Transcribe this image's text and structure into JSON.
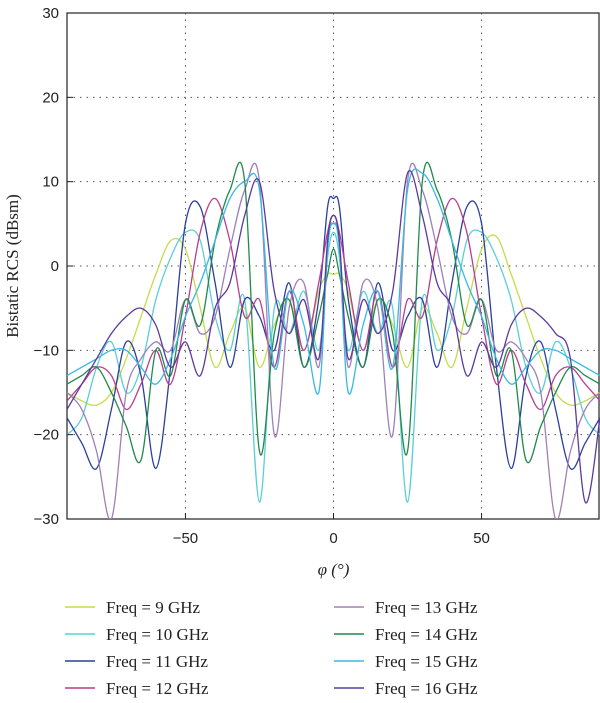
{
  "chart_data": {
    "type": "line",
    "xlabel": "φ (°)",
    "ylabel": "Bistatic RCS (dBsm)",
    "xlim": [
      -90,
      90
    ],
    "ylim": [
      -30,
      30
    ],
    "xticks": [
      -50,
      0,
      50
    ],
    "yticks": [
      -30,
      -20,
      -10,
      0,
      10,
      20,
      30
    ],
    "grid": true,
    "legend_position": "bottom",
    "series": [
      {
        "name": "Freq = 9 GHz",
        "color": "#c6dc4a",
        "x": [
          -90,
          -85,
          -80,
          -75,
          -70,
          -65,
          -60,
          -55,
          -50,
          -45,
          -40,
          -35,
          -30,
          -25,
          -20,
          -15,
          -10,
          -5,
          -2,
          0,
          2,
          5,
          10,
          15,
          20,
          25,
          30,
          35,
          40,
          45,
          50,
          55,
          60,
          65,
          70,
          75,
          80,
          85,
          90
        ],
        "y": [
          -15,
          -16,
          -16.5,
          -15,
          -11,
          -6,
          -1,
          3,
          2,
          -5,
          -12,
          -8,
          -5,
          -12,
          -7,
          -4,
          -10,
          -3,
          -1,
          -1,
          -1,
          -3,
          -10,
          -4,
          -7,
          -12,
          -5,
          -8,
          -12,
          -5,
          2,
          3.5,
          -1,
          -6,
          -11,
          -15,
          -16.5,
          -16,
          -15
        ]
      },
      {
        "name": "Freq = 10 GHz",
        "color": "#5bcfd6",
        "x": [
          -90,
          -85,
          -80,
          -75,
          -70,
          -65,
          -60,
          -55,
          -50,
          -45,
          -40,
          -35,
          -30,
          -25,
          -20,
          -15,
          -10,
          -5,
          -2,
          0,
          2,
          5,
          10,
          15,
          20,
          25,
          30,
          35,
          40,
          45,
          50,
          55,
          60,
          65,
          70,
          75,
          80,
          85,
          90
        ],
        "y": [
          -20,
          -18,
          -12,
          -9,
          -15,
          -12,
          -4,
          1,
          4,
          3,
          -6,
          -10,
          -4,
          -28,
          -5,
          -8,
          -3,
          -10,
          1,
          4,
          1,
          -10,
          -3,
          -8,
          -5,
          -28,
          -4,
          -10,
          -6,
          3,
          4,
          1,
          -4,
          -12,
          -15,
          -9,
          -12,
          -18,
          -20
        ]
      },
      {
        "name": "Freq = 11 GHz",
        "color": "#2b3f9e",
        "x": [
          -90,
          -85,
          -80,
          -75,
          -70,
          -65,
          -60,
          -55,
          -50,
          -45,
          -40,
          -35,
          -30,
          -25,
          -20,
          -15,
          -10,
          -5,
          -2,
          0,
          2,
          5,
          10,
          15,
          20,
          25,
          30,
          35,
          40,
          45,
          50,
          55,
          60,
          65,
          70,
          75,
          80,
          85,
          90
        ],
        "y": [
          -18,
          -21,
          -24,
          -17,
          -9,
          -13,
          -24,
          -12,
          5,
          7,
          -2,
          -12,
          -4,
          -6,
          -10,
          -2,
          -12,
          -4,
          7,
          8,
          7,
          -4,
          -12,
          -2,
          -10,
          -6,
          -4,
          -12,
          -2,
          7,
          5,
          -12,
          -24,
          -13,
          -9,
          -17,
          -24,
          -21,
          -18
        ]
      },
      {
        "name": "Freq = 12 GHz",
        "color": "#b83e8e",
        "x": [
          -90,
          -85,
          -80,
          -75,
          -70,
          -65,
          -60,
          -55,
          -50,
          -45,
          -40,
          -35,
          -30,
          -25,
          -20,
          -15,
          -10,
          -5,
          -2,
          0,
          2,
          5,
          10,
          15,
          20,
          25,
          30,
          35,
          40,
          45,
          50,
          55,
          60,
          65,
          70,
          75,
          80,
          85,
          90
        ],
        "y": [
          -16,
          -14,
          -12,
          -13,
          -17,
          -14,
          -10,
          -14,
          -6,
          4,
          8,
          3,
          -6,
          -4,
          -12,
          -3,
          -10,
          -2,
          4,
          6,
          4,
          -2,
          -10,
          -3,
          -12,
          -4,
          -6,
          3,
          8,
          4,
          -6,
          -14,
          -10,
          -14,
          -17,
          -13,
          -12,
          -14,
          -16
        ]
      },
      {
        "name": "Freq = 13 GHz",
        "color": "#a080b8",
        "x": [
          -90,
          -85,
          -80,
          -75,
          -70,
          -65,
          -60,
          -55,
          -50,
          -45,
          -40,
          -35,
          -30,
          -25,
          -20,
          -15,
          -10,
          -5,
          -2,
          0,
          2,
          5,
          10,
          15,
          20,
          25,
          30,
          35,
          40,
          45,
          50,
          55,
          60,
          65,
          70,
          75,
          80,
          85,
          90
        ],
        "y": [
          -15,
          -17,
          -22,
          -30,
          -15,
          -11,
          -9,
          -10,
          -4,
          -8,
          -6,
          2,
          9,
          10,
          -20,
          -5,
          -2,
          -12,
          3,
          5,
          3,
          -12,
          -2,
          -5,
          -20,
          10,
          9,
          2,
          -6,
          -8,
          -4,
          -10,
          -9,
          -11,
          -15,
          -30,
          -22,
          -17,
          -15
        ]
      },
      {
        "name": "Freq = 14 GHz",
        "color": "#1f8a4a",
        "x": [
          -90,
          -85,
          -80,
          -75,
          -70,
          -65,
          -60,
          -55,
          -50,
          -45,
          -40,
          -35,
          -30,
          -25,
          -20,
          -15,
          -10,
          -5,
          -2,
          0,
          2,
          5,
          10,
          15,
          20,
          25,
          30,
          35,
          40,
          45,
          50,
          55,
          60,
          65,
          70,
          75,
          80,
          85,
          90
        ],
        "y": [
          -14,
          -13,
          -12,
          -15,
          -19,
          -23,
          -10,
          -13,
          -4,
          -7,
          3,
          9,
          10,
          -22,
          -8,
          -4,
          -12,
          -6,
          -1,
          2,
          -1,
          -6,
          -12,
          -4,
          -8,
          -22,
          10,
          9,
          3,
          -7,
          -4,
          -13,
          -10,
          -23,
          -19,
          -15,
          -12,
          -13,
          -14
        ]
      },
      {
        "name": "Freq = 15 GHz",
        "color": "#38b8e2",
        "x": [
          -90,
          -85,
          -80,
          -75,
          -70,
          -65,
          -60,
          -55,
          -50,
          -45,
          -40,
          -35,
          -30,
          -25,
          -20,
          -15,
          -10,
          -5,
          -2,
          0,
          2,
          5,
          10,
          15,
          20,
          25,
          30,
          35,
          40,
          45,
          50,
          55,
          60,
          65,
          70,
          75,
          80,
          85,
          90
        ],
        "y": [
          -13,
          -12,
          -11,
          -10,
          -10,
          -12,
          -14,
          -11,
          -6,
          -2,
          3,
          8,
          10,
          9,
          -12,
          -3,
          -7,
          -15,
          2,
          5,
          2,
          -15,
          -7,
          -3,
          -12,
          9,
          11,
          8,
          3,
          -2,
          -6,
          -11,
          -14,
          -12,
          -10,
          -10,
          -11,
          -12,
          -13
        ]
      },
      {
        "name": "Freq = 16 GHz",
        "color": "#5b3a9e",
        "x": [
          -90,
          -85,
          -80,
          -75,
          -70,
          -65,
          -60,
          -55,
          -50,
          -45,
          -40,
          -35,
          -30,
          -25,
          -20,
          -15,
          -10,
          -5,
          -2,
          0,
          2,
          5,
          10,
          15,
          20,
          25,
          30,
          35,
          40,
          45,
          50,
          55,
          60,
          65,
          70,
          75,
          80,
          85,
          90
        ],
        "y": [
          -17,
          -14,
          -11,
          -8,
          -6,
          -5,
          -7,
          -12,
          -9,
          -13,
          -5,
          -2,
          6,
          10,
          -3,
          -8,
          -4,
          -11,
          3,
          6,
          3,
          -11,
          -4,
          -8,
          -3,
          11,
          6,
          -2,
          -5,
          -13,
          -9,
          -12,
          -7,
          -5,
          -6,
          -8,
          -11,
          -28,
          -18
        ]
      }
    ]
  }
}
